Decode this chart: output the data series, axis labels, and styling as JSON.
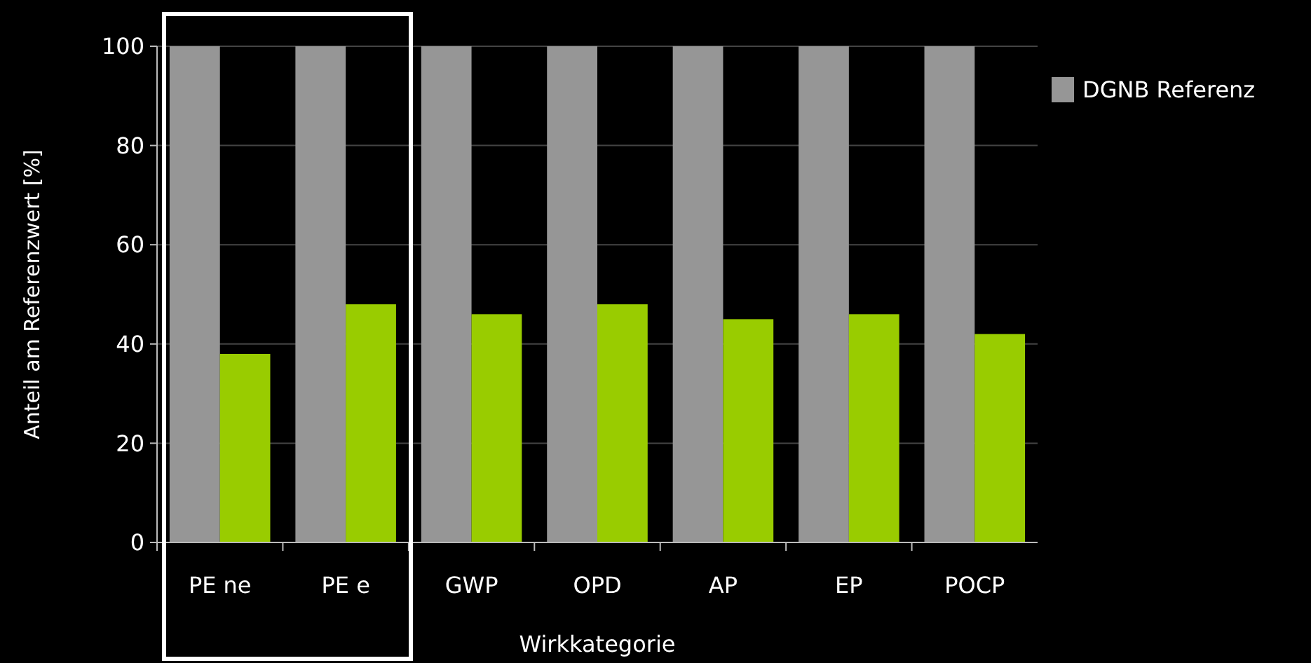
{
  "chart_data": {
    "type": "bar",
    "xlabel": "Wirkkategorie",
    "ylabel": "Anteil am Referenzwert [%]",
    "categories": [
      "PE ne",
      "PE e",
      "GWP",
      "OPD",
      "AP",
      "EP",
      "POCP"
    ],
    "series": [
      {
        "name": "DGNB Referenz",
        "color": "#969696",
        "values": [
          100,
          100,
          100,
          100,
          100,
          100,
          100
        ]
      },
      {
        "color": "#99cc00",
        "values": [
          38,
          48,
          46,
          48,
          45,
          46,
          42
        ]
      }
    ],
    "ylim": [
      0,
      100
    ],
    "yticks": [
      0,
      20,
      40,
      60,
      80,
      100
    ],
    "grid": "y",
    "legend": "right"
  }
}
